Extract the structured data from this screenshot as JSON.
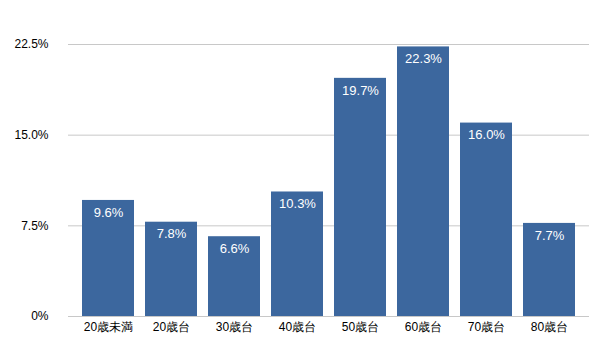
{
  "chart_data": {
    "type": "bar",
    "categories": [
      "20歳未満",
      "20歳台",
      "30歳台",
      "40歳台",
      "50歳台",
      "60歳台",
      "70歳台",
      "80歳台"
    ],
    "values": [
      9.6,
      7.8,
      6.6,
      10.3,
      19.7,
      22.3,
      16.0,
      7.7
    ],
    "value_labels": [
      "9.6%",
      "7.8%",
      "6.6%",
      "10.3%",
      "19.7%",
      "22.3%",
      "16.0%",
      "7.7%"
    ],
    "color": "#3c679e",
    "ylim": [
      0,
      22.5
    ],
    "yticks": [
      {
        "value": 0,
        "label": "0%"
      },
      {
        "value": 7.5,
        "label": "7.5%"
      },
      {
        "value": 15,
        "label": "15.0%"
      },
      {
        "value": 22.5,
        "label": "22.5%"
      }
    ],
    "grid": true,
    "data_labels": true
  }
}
